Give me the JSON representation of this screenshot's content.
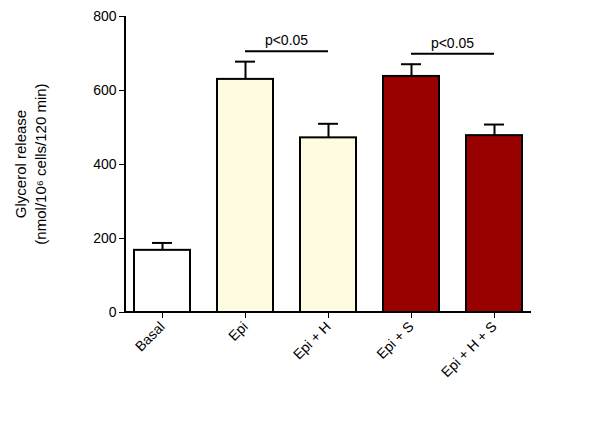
{
  "chart_data": {
    "type": "bar",
    "categories": [
      "Basal",
      "Epi",
      "Epi + H",
      "Epi + S",
      "Epi + H + S"
    ],
    "values": [
      168,
      630,
      472,
      638,
      478
    ],
    "errors": [
      20,
      48,
      38,
      33,
      30
    ],
    "colors": [
      "#ffffff",
      "#fffbe0",
      "#fffbe0",
      "#990000",
      "#990000"
    ],
    "ylabel": "Glycerol release\n(nmol/10⁶ cells/120 min)",
    "ylim": [
      0,
      800
    ],
    "yticks": [
      0,
      200,
      400,
      600,
      800
    ],
    "annotations": [
      {
        "text": "p<0.05",
        "from": "Epi",
        "to": "Epi + H"
      },
      {
        "text": "p<0.05",
        "from": "Epi + S",
        "to": "Epi + H + S"
      }
    ]
  }
}
